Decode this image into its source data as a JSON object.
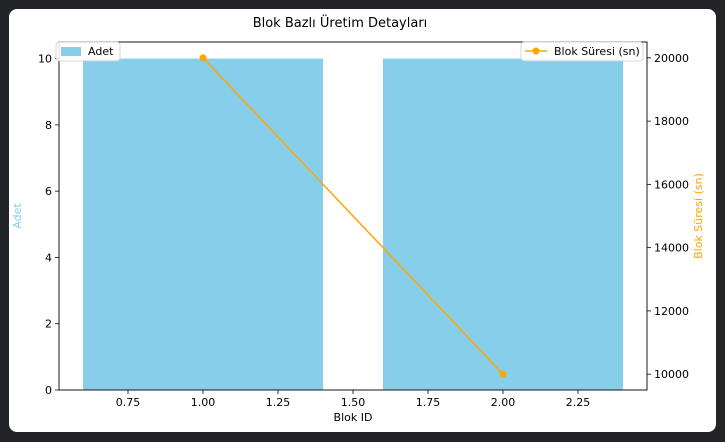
{
  "chart_data": {
    "type": "bar+line",
    "title": "Blok Bazlı Üretim Detayları",
    "xlabel": "Blok ID",
    "xlim": [
      0.52,
      2.48
    ],
    "x_ticks": [
      "0.75",
      "1.00",
      "1.25",
      "1.50",
      "1.75",
      "2.00",
      "2.25"
    ],
    "x_tick_values": [
      0.75,
      1.0,
      1.25,
      1.5,
      1.75,
      2.0,
      2.25
    ],
    "bars": {
      "name": "Adet",
      "axis": "left",
      "color": "#87ceeb",
      "width": 0.8,
      "x": [
        1,
        2
      ],
      "values": [
        10,
        10
      ]
    },
    "line": {
      "name": "Blok Süresi (sn)",
      "axis": "right",
      "color": "#ffa500",
      "marker": "circle",
      "x": [
        1,
        2
      ],
      "values": [
        20000,
        10000
      ]
    },
    "y_left": {
      "label": "Adet",
      "label_color": "#87ceeb",
      "ylim": [
        0,
        10.5
      ],
      "ticks": [
        "0",
        "2",
        "4",
        "6",
        "8",
        "10"
      ],
      "tick_values": [
        0,
        2,
        4,
        6,
        8,
        10
      ]
    },
    "y_right": {
      "label": "Blok Süresi (sn)",
      "label_color": "#ffa500",
      "ylim": [
        9500,
        20500
      ],
      "ticks": [
        "10000",
        "12000",
        "14000",
        "16000",
        "18000",
        "20000"
      ],
      "tick_values": [
        10000,
        12000,
        14000,
        16000,
        18000,
        20000
      ]
    },
    "legends": [
      {
        "series": "Adet",
        "placement": "upper-left"
      },
      {
        "series": "Blok Süresi (sn)",
        "placement": "upper-right"
      }
    ],
    "grid": false
  }
}
